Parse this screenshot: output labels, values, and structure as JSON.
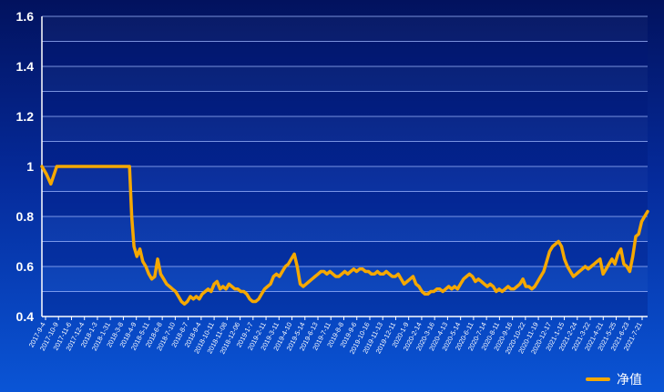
{
  "chart_data": {
    "type": "line",
    "title": "",
    "xlabel": "",
    "ylabel": "",
    "ylim": [
      0.4,
      1.6
    ],
    "yticks": [
      "0.4",
      "0.6",
      "0.8",
      "1",
      "1.2",
      "1.4",
      "1.6"
    ],
    "grid": "horizontal",
    "legend_position": "bottom-right",
    "colors": {
      "line": "#f5a800",
      "grid": "#9fb8ff",
      "axis": "#ffffff"
    },
    "x_tick_labels": [
      "2017-9-4",
      "2017-10-9",
      "2017-11-6",
      "2017-12-4",
      "2018-1-3",
      "2018-1-31",
      "2018-3-8",
      "2018-4-9",
      "2018-5-11",
      "2018-6-8",
      "2018-7-10",
      "2018-8-7",
      "2018-9-4",
      "2018-10-11",
      "2018-11-08",
      "2018-12-06",
      "2019-1-7",
      "2019-2-11",
      "2019-3-11",
      "2019-4-10",
      "2019-5-14",
      "2019-6-13",
      "2019-7-11",
      "2019-8-8",
      "2019-9-6",
      "2019-10-16",
      "2019-11-13",
      "2019-12-11",
      "2020-1-9",
      "2020-2-14",
      "2020-3-16",
      "2020-4-13",
      "2020-5-14",
      "2020-6-11",
      "2020-7-14",
      "2020-8-11",
      "2020-9-16",
      "2020-10-22",
      "2020-11-19",
      "2020-12-17",
      "2021-1-15",
      "2021-2-24",
      "2021-3-22",
      "2021-4-21",
      "2021-5-25",
      "2021-6-23",
      "2021-7-21"
    ],
    "series": [
      {
        "name": "净值",
        "values": [
          [
            0.0,
            1.0
          ],
          [
            0.3,
            0.97
          ],
          [
            0.6,
            0.93
          ],
          [
            1.0,
            1.0
          ],
          [
            2.0,
            1.0
          ],
          [
            3.0,
            1.0
          ],
          [
            4.0,
            1.0
          ],
          [
            5.0,
            1.0
          ],
          [
            5.9,
            1.0
          ],
          [
            6.05,
            0.8
          ],
          [
            6.2,
            0.68
          ],
          [
            6.4,
            0.64
          ],
          [
            6.6,
            0.67
          ],
          [
            6.8,
            0.62
          ],
          [
            7.0,
            0.6
          ],
          [
            7.2,
            0.57
          ],
          [
            7.4,
            0.55
          ],
          [
            7.6,
            0.56
          ],
          [
            7.8,
            0.63
          ],
          [
            8.0,
            0.57
          ],
          [
            8.2,
            0.55
          ],
          [
            8.4,
            0.53
          ],
          [
            8.6,
            0.52
          ],
          [
            8.8,
            0.51
          ],
          [
            9.0,
            0.5
          ],
          [
            9.2,
            0.48
          ],
          [
            9.4,
            0.46
          ],
          [
            9.6,
            0.45
          ],
          [
            9.8,
            0.46
          ],
          [
            10.0,
            0.48
          ],
          [
            10.2,
            0.47
          ],
          [
            10.4,
            0.48
          ],
          [
            10.6,
            0.47
          ],
          [
            10.8,
            0.49
          ],
          [
            11.0,
            0.5
          ],
          [
            11.2,
            0.51
          ],
          [
            11.4,
            0.5
          ],
          [
            11.6,
            0.53
          ],
          [
            11.8,
            0.54
          ],
          [
            12.0,
            0.51
          ],
          [
            12.2,
            0.52
          ],
          [
            12.4,
            0.51
          ],
          [
            12.6,
            0.53
          ],
          [
            12.8,
            0.52
          ],
          [
            13.0,
            0.51
          ],
          [
            13.2,
            0.51
          ],
          [
            13.4,
            0.5
          ],
          [
            13.6,
            0.5
          ],
          [
            13.8,
            0.49
          ],
          [
            14.0,
            0.47
          ],
          [
            14.2,
            0.46
          ],
          [
            14.4,
            0.46
          ],
          [
            14.6,
            0.47
          ],
          [
            14.8,
            0.49
          ],
          [
            15.0,
            0.51
          ],
          [
            15.2,
            0.52
          ],
          [
            15.4,
            0.53
          ],
          [
            15.6,
            0.56
          ],
          [
            15.8,
            0.57
          ],
          [
            16.0,
            0.56
          ],
          [
            16.2,
            0.58
          ],
          [
            16.4,
            0.6
          ],
          [
            16.6,
            0.61
          ],
          [
            16.8,
            0.63
          ],
          [
            17.0,
            0.65
          ],
          [
            17.2,
            0.6
          ],
          [
            17.4,
            0.53
          ],
          [
            17.6,
            0.52
          ],
          [
            17.8,
            0.53
          ],
          [
            18.0,
            0.54
          ],
          [
            18.2,
            0.55
          ],
          [
            18.4,
            0.56
          ],
          [
            18.6,
            0.57
          ],
          [
            18.8,
            0.58
          ],
          [
            19.0,
            0.58
          ],
          [
            19.2,
            0.57
          ],
          [
            19.4,
            0.58
          ],
          [
            19.6,
            0.57
          ],
          [
            19.8,
            0.56
          ],
          [
            20.0,
            0.56
          ],
          [
            20.2,
            0.57
          ],
          [
            20.4,
            0.58
          ],
          [
            20.6,
            0.57
          ],
          [
            20.8,
            0.58
          ],
          [
            21.0,
            0.59
          ],
          [
            21.2,
            0.58
          ],
          [
            21.4,
            0.59
          ],
          [
            21.6,
            0.59
          ],
          [
            21.8,
            0.58
          ],
          [
            22.0,
            0.58
          ],
          [
            22.2,
            0.57
          ],
          [
            22.4,
            0.57
          ],
          [
            22.6,
            0.58
          ],
          [
            22.8,
            0.57
          ],
          [
            23.0,
            0.57
          ],
          [
            23.2,
            0.58
          ],
          [
            23.4,
            0.57
          ],
          [
            23.6,
            0.56
          ],
          [
            23.8,
            0.56
          ],
          [
            24.0,
            0.57
          ],
          [
            24.2,
            0.55
          ],
          [
            24.4,
            0.53
          ],
          [
            24.6,
            0.54
          ],
          [
            24.8,
            0.55
          ],
          [
            25.0,
            0.56
          ],
          [
            25.2,
            0.53
          ],
          [
            25.4,
            0.52
          ],
          [
            25.6,
            0.5
          ],
          [
            25.8,
            0.49
          ],
          [
            26.0,
            0.49
          ],
          [
            26.2,
            0.5
          ],
          [
            26.4,
            0.5
          ],
          [
            26.6,
            0.51
          ],
          [
            26.8,
            0.51
          ],
          [
            27.0,
            0.5
          ],
          [
            27.2,
            0.51
          ],
          [
            27.4,
            0.52
          ],
          [
            27.6,
            0.51
          ],
          [
            27.8,
            0.52
          ],
          [
            28.0,
            0.51
          ],
          [
            28.2,
            0.53
          ],
          [
            28.4,
            0.55
          ],
          [
            28.6,
            0.56
          ],
          [
            28.8,
            0.57
          ],
          [
            29.0,
            0.56
          ],
          [
            29.2,
            0.54
          ],
          [
            29.4,
            0.55
          ],
          [
            29.6,
            0.54
          ],
          [
            29.8,
            0.53
          ],
          [
            30.0,
            0.52
          ],
          [
            30.2,
            0.53
          ],
          [
            30.4,
            0.52
          ],
          [
            30.6,
            0.5
          ],
          [
            30.8,
            0.51
          ],
          [
            31.0,
            0.5
          ],
          [
            31.2,
            0.51
          ],
          [
            31.4,
            0.52
          ],
          [
            31.6,
            0.51
          ],
          [
            31.8,
            0.51
          ],
          [
            32.0,
            0.52
          ],
          [
            32.2,
            0.53
          ],
          [
            32.4,
            0.55
          ],
          [
            32.6,
            0.52
          ],
          [
            32.8,
            0.52
          ],
          [
            33.0,
            0.51
          ],
          [
            33.2,
            0.52
          ],
          [
            33.4,
            0.54
          ],
          [
            33.6,
            0.56
          ],
          [
            33.8,
            0.58
          ],
          [
            34.0,
            0.62
          ],
          [
            34.2,
            0.66
          ],
          [
            34.4,
            0.68
          ],
          [
            34.6,
            0.69
          ],
          [
            34.8,
            0.7
          ],
          [
            35.0,
            0.68
          ],
          [
            35.2,
            0.63
          ],
          [
            35.4,
            0.6
          ],
          [
            35.6,
            0.58
          ],
          [
            35.8,
            0.56
          ],
          [
            36.0,
            0.57
          ],
          [
            36.2,
            0.58
          ],
          [
            36.4,
            0.59
          ],
          [
            36.6,
            0.6
          ],
          [
            36.8,
            0.59
          ],
          [
            37.0,
            0.6
          ],
          [
            37.2,
            0.61
          ],
          [
            37.4,
            0.62
          ],
          [
            37.6,
            0.63
          ],
          [
            37.8,
            0.57
          ],
          [
            38.0,
            0.59
          ],
          [
            38.2,
            0.61
          ],
          [
            38.4,
            0.63
          ],
          [
            38.6,
            0.61
          ],
          [
            38.8,
            0.65
          ],
          [
            39.0,
            0.67
          ],
          [
            39.2,
            0.61
          ],
          [
            39.4,
            0.6
          ],
          [
            39.6,
            0.58
          ],
          [
            39.8,
            0.64
          ],
          [
            40.0,
            0.72
          ],
          [
            40.2,
            0.73
          ],
          [
            40.4,
            0.78
          ],
          [
            40.6,
            0.8
          ],
          [
            40.8,
            0.82
          ]
        ]
      }
    ]
  }
}
